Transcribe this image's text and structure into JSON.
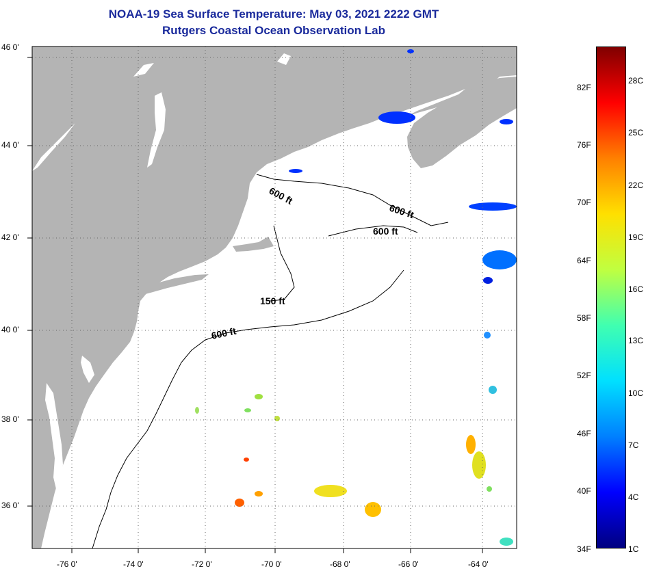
{
  "title": {
    "line1": "NOAA-19 Sea Surface Temperature:  May 03, 2021 2222 GMT",
    "line2": "Rutgers Coastal Ocean Observation Lab",
    "color": "#1a2a9c"
  },
  "map": {
    "land_color": "#b4b4b4",
    "ocean_color": "#ffffff",
    "lat_labels": [
      "46 0'",
      "44 0'",
      "42 0'",
      "40 0'",
      "38 0'",
      "36 0'"
    ],
    "lon_labels": [
      "-76 0'",
      "-74 0'",
      "-72 0'",
      "-70 0'",
      "-68 0'",
      "-66 0'",
      "-64 0'"
    ],
    "isobath_labels": [
      "600 ft",
      "600 ft",
      "600 ft",
      "150 ft",
      "600 ft"
    ]
  },
  "colorbar": {
    "f_labels": [
      "82F",
      "76F",
      "70F",
      "64F",
      "58F",
      "52F",
      "46F",
      "40F",
      "34F"
    ],
    "c_labels": [
      "28C",
      "25C",
      "22C",
      "19C",
      "16C",
      "13C",
      "10C",
      "7C",
      "4C",
      "1C"
    ],
    "stops": [
      "#000080",
      "#0000ff",
      "#0080ff",
      "#00e0ff",
      "#40ffb0",
      "#c0ff40",
      "#ffe000",
      "#ff8000",
      "#ff0000",
      "#800000"
    ]
  }
}
